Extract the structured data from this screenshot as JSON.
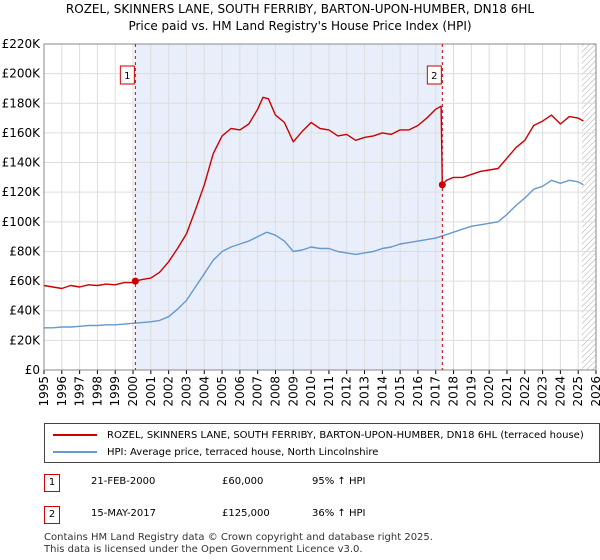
{
  "title": "ROZEL, SKINNERS LANE, SOUTH FERRIBY, BARTON-UPON-HUMBER, DN18 6HL",
  "subtitle": "Price paid vs. HM Land Registry's House Price Index (HPI)",
  "legend": {
    "property": "ROZEL, SKINNERS LANE, SOUTH FERRIBY, BARTON-UPON-HUMBER, DN18 6HL (terraced house)",
    "hpi": "HPI: Average price, terraced house, North Lincolnshire"
  },
  "sales": [
    {
      "num": "1",
      "date": "21-FEB-2000",
      "price": "£60,000",
      "hpi": "95% ↑ HPI"
    },
    {
      "num": "2",
      "date": "15-MAY-2017",
      "price": "£125,000",
      "hpi": "36% ↑ HPI"
    }
  ],
  "footer": {
    "line1": "Contains HM Land Registry data © Crown copyright and database right 2025.",
    "line2": "This data is licensed under the Open Government Licence v3.0."
  },
  "colors": {
    "property": "#cc0000",
    "hpi": "#6699cc",
    "shade": "#e8eefa"
  },
  "chart_data": {
    "type": "line",
    "xlim": [
      1995,
      2026
    ],
    "ylim": [
      0,
      220000
    ],
    "yticks": [
      0,
      20000,
      40000,
      60000,
      80000,
      100000,
      120000,
      140000,
      160000,
      180000,
      200000,
      220000
    ],
    "ytick_labels": [
      "£0",
      "£20K",
      "£40K",
      "£60K",
      "£80K",
      "£100K",
      "£120K",
      "£140K",
      "£160K",
      "£180K",
      "£200K",
      "£220K"
    ],
    "xticks": [
      "1995",
      "1996",
      "1997",
      "1998",
      "1999",
      "2000",
      "2001",
      "2002",
      "2003",
      "2004",
      "2005",
      "2006",
      "2007",
      "2008",
      "2009",
      "2010",
      "2011",
      "2012",
      "2013",
      "2014",
      "2015",
      "2016",
      "2017",
      "2018",
      "2019",
      "2020",
      "2021",
      "2022",
      "2023",
      "2024",
      "2025",
      "2026"
    ],
    "shaded_range": [
      2000.13,
      2017.37
    ],
    "future_from": 2025.2,
    "markers": [
      {
        "label": "1",
        "x": 2000.13,
        "y": 60000
      },
      {
        "label": "2",
        "x": 2017.37,
        "y": 125000
      }
    ],
    "series": [
      {
        "name": "ROZEL, SKINNERS LANE, SOUTH FERRIBY, BARTON-UPON-HUMBER, DN18 6HL (terraced house)",
        "x": [
          1995.0,
          1995.5,
          1996.0,
          1996.5,
          1997.0,
          1997.5,
          1998.0,
          1998.5,
          1999.0,
          1999.5,
          2000.0,
          2000.13,
          2000.5,
          2001.0,
          2001.5,
          2002.0,
          2002.5,
          2003.0,
          2003.5,
          2004.0,
          2004.5,
          2005.0,
          2005.5,
          2006.0,
          2006.5,
          2007.0,
          2007.3,
          2007.6,
          2008.0,
          2008.5,
          2009.0,
          2009.5,
          2010.0,
          2010.5,
          2011.0,
          2011.5,
          2012.0,
          2012.5,
          2013.0,
          2013.5,
          2014.0,
          2014.5,
          2015.0,
          2015.5,
          2016.0,
          2016.5,
          2017.0,
          2017.3,
          2017.37,
          2017.6,
          2018.0,
          2018.5,
          2019.0,
          2019.5,
          2020.0,
          2020.5,
          2021.0,
          2021.5,
          2022.0,
          2022.5,
          2023.0,
          2023.5,
          2024.0,
          2024.5,
          2025.0,
          2025.3
        ],
        "values": [
          57000,
          56000,
          55000,
          57000,
          56000,
          57500,
          57000,
          58000,
          57500,
          59000,
          59000,
          60000,
          61000,
          62000,
          66000,
          73000,
          82000,
          92000,
          108000,
          125000,
          146000,
          158000,
          163000,
          162000,
          166000,
          176000,
          184000,
          183000,
          172000,
          167000,
          154000,
          161000,
          167000,
          163000,
          162000,
          158000,
          159000,
          155000,
          157000,
          158000,
          160000,
          159000,
          162000,
          162000,
          165000,
          170000,
          176000,
          178000,
          125000,
          128000,
          130000,
          130000,
          132000,
          134000,
          135000,
          136000,
          143000,
          150000,
          155000,
          165000,
          168000,
          172000,
          166000,
          171000,
          170000,
          168000
        ]
      },
      {
        "name": "HPI: Average price, terraced house, North Lincolnshire",
        "x": [
          1995.0,
          1995.5,
          1996.0,
          1996.5,
          1997.0,
          1997.5,
          1998.0,
          1998.5,
          1999.0,
          1999.5,
          2000.0,
          2000.5,
          2001.0,
          2001.5,
          2002.0,
          2002.5,
          2003.0,
          2003.5,
          2004.0,
          2004.5,
          2005.0,
          2005.5,
          2006.0,
          2006.5,
          2007.0,
          2007.5,
          2008.0,
          2008.5,
          2009.0,
          2009.5,
          2010.0,
          2010.5,
          2011.0,
          2011.5,
          2012.0,
          2012.5,
          2013.0,
          2013.5,
          2014.0,
          2014.5,
          2015.0,
          2015.5,
          2016.0,
          2016.5,
          2017.0,
          2017.5,
          2018.0,
          2018.5,
          2019.0,
          2019.5,
          2020.0,
          2020.5,
          2021.0,
          2021.5,
          2022.0,
          2022.5,
          2023.0,
          2023.5,
          2024.0,
          2024.5,
          2025.0,
          2025.3
        ],
        "values": [
          28500,
          28500,
          29000,
          29000,
          29500,
          30000,
          30000,
          30500,
          30500,
          31000,
          31500,
          32000,
          32500,
          33500,
          36000,
          41000,
          47000,
          56000,
          65000,
          74000,
          80000,
          83000,
          85000,
          87000,
          90000,
          93000,
          91000,
          87000,
          80000,
          81000,
          83000,
          82000,
          82000,
          80000,
          79000,
          78000,
          79000,
          80000,
          82000,
          83000,
          85000,
          86000,
          87000,
          88000,
          89000,
          91000,
          93000,
          95000,
          97000,
          98000,
          99000,
          100000,
          105000,
          111000,
          116000,
          122000,
          124000,
          128000,
          126000,
          128000,
          127000,
          125000
        ]
      }
    ]
  }
}
